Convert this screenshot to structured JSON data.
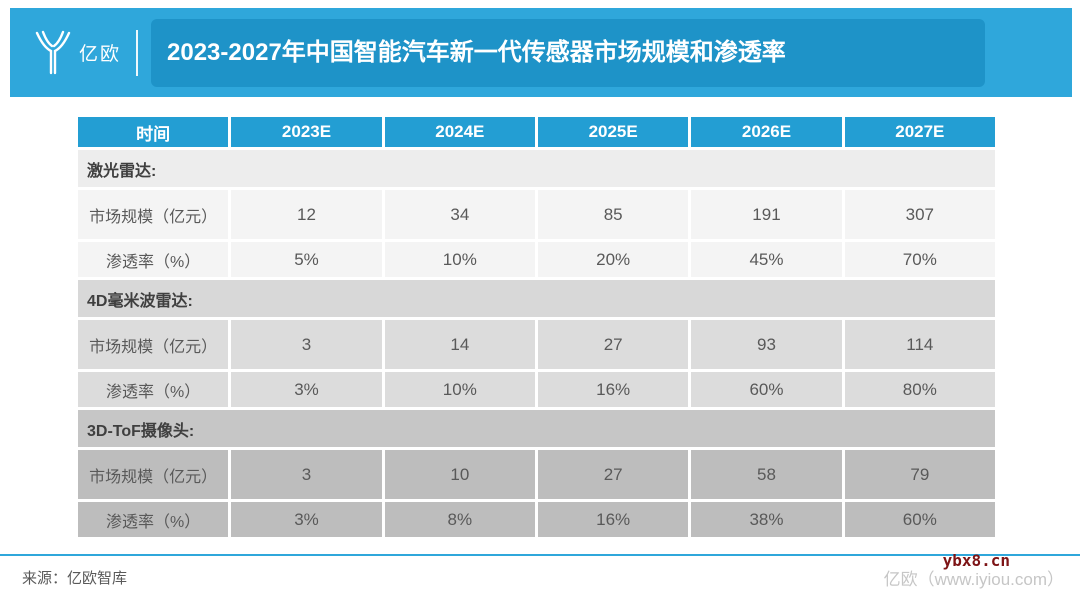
{
  "header": {
    "logo_text": "亿欧",
    "title": "2023-2027年中国智能汽车新一代传感器市场规模和渗透率"
  },
  "table": {
    "columns": [
      "时间",
      "2023E",
      "2024E",
      "2025E",
      "2026E",
      "2027E"
    ],
    "sections": [
      {
        "name": "激光雷达:",
        "rows": [
          {
            "label": "市场规模（亿元）",
            "values": [
              "12",
              "34",
              "85",
              "191",
              "307"
            ]
          },
          {
            "label": "渗透率（%）",
            "values": [
              "5%",
              "10%",
              "20%",
              "45%",
              "70%"
            ]
          }
        ]
      },
      {
        "name": "4D毫米波雷达:",
        "rows": [
          {
            "label": "市场规模（亿元）",
            "values": [
              "3",
              "14",
              "27",
              "93",
              "114"
            ]
          },
          {
            "label": "渗透率（%）",
            "values": [
              "3%",
              "10%",
              "16%",
              "60%",
              "80%"
            ]
          }
        ]
      },
      {
        "name": "3D-ToF摄像头:",
        "rows": [
          {
            "label": "市场规模（亿元）",
            "values": [
              "3",
              "10",
              "27",
              "58",
              "79"
            ]
          },
          {
            "label": "渗透率（%）",
            "values": [
              "3%",
              "8%",
              "16%",
              "38%",
              "60%"
            ]
          }
        ]
      }
    ]
  },
  "footer": {
    "source": "来源：亿欧智库",
    "brand": "亿欧（www.iyiou.com）",
    "watermark": "ybx8.cn"
  },
  "colors": {
    "banner_blue": "#2fa7db",
    "title_box_blue": "#1e93c8",
    "table_header_blue": "#239ed3",
    "section1_bg": "#f4f4f4",
    "section2_bg": "#dcdcdc",
    "section3_bg": "#bdbdbd",
    "watermark_red": "#7d1416",
    "text_gray": "#595959"
  },
  "chart_data": {
    "type": "table",
    "title": "2023-2027年中国智能汽车新一代传感器市场规模和渗透率",
    "columns": [
      "时间",
      "2023E",
      "2024E",
      "2025E",
      "2026E",
      "2027E"
    ],
    "sections": [
      {
        "name": "激光雷达",
        "market_size_yi_yuan": [
          12,
          34,
          85,
          191,
          307
        ],
        "penetration_pct": [
          5,
          10,
          20,
          45,
          70
        ]
      },
      {
        "name": "4D毫米波雷达",
        "market_size_yi_yuan": [
          3,
          14,
          27,
          93,
          114
        ],
        "penetration_pct": [
          3,
          10,
          16,
          60,
          80
        ]
      },
      {
        "name": "3D-ToF摄像头",
        "market_size_yi_yuan": [
          3,
          10,
          27,
          58,
          79
        ],
        "penetration_pct": [
          3,
          8,
          16,
          38,
          60
        ]
      }
    ],
    "source": "亿欧智库"
  }
}
